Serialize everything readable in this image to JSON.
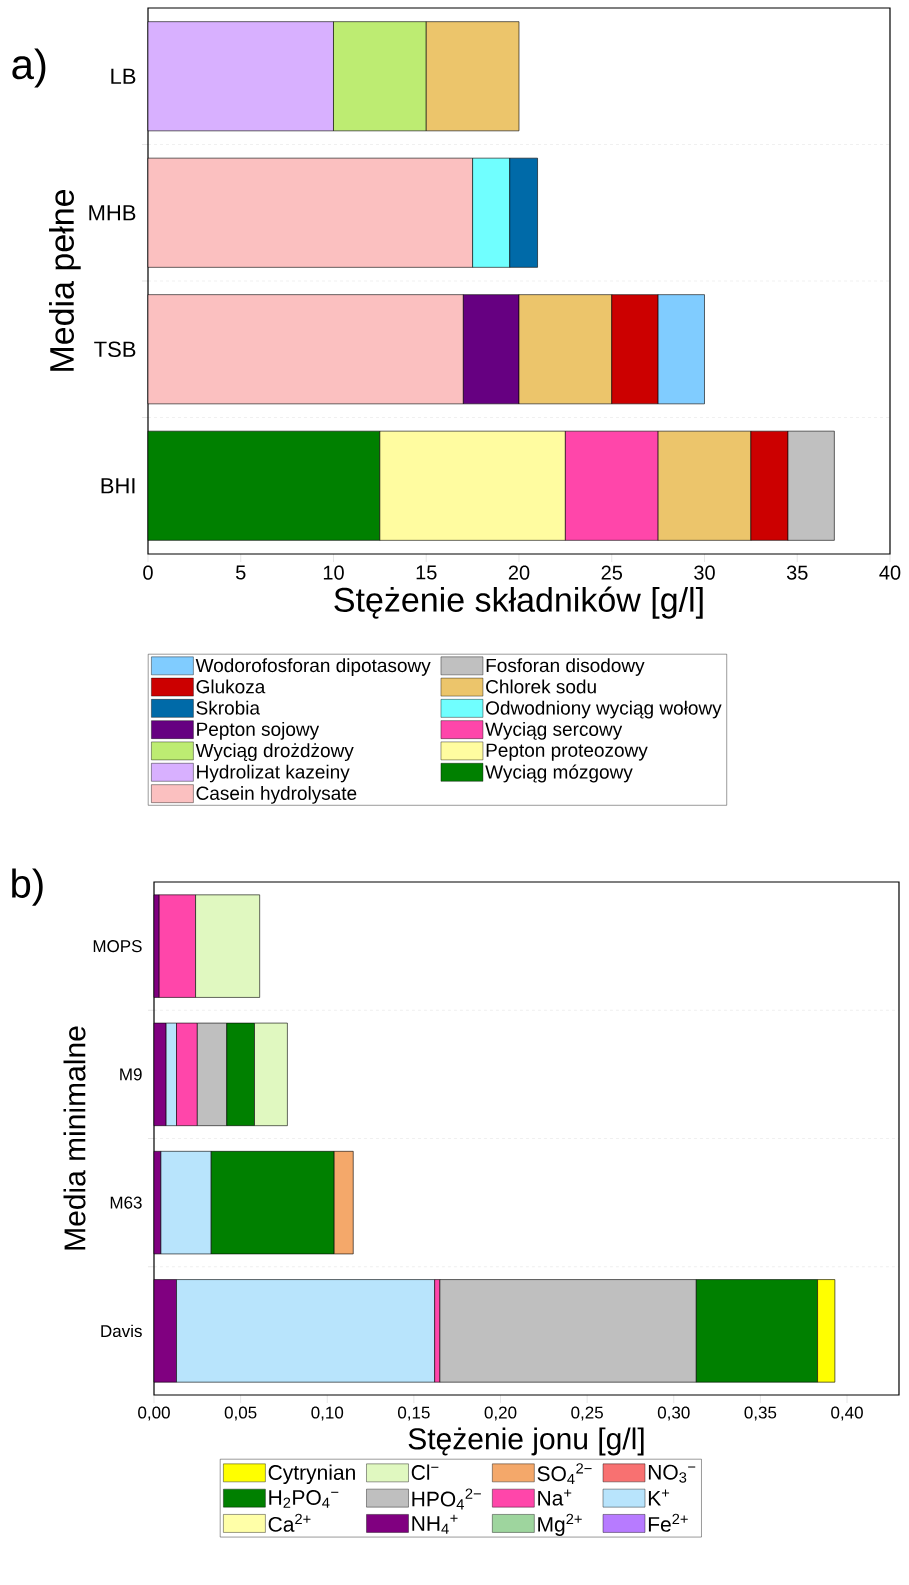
{
  "chart_data": [
    {
      "type": "bar",
      "orientation": "horizontal",
      "stacked": true,
      "annotations": [
        "a)"
      ],
      "xlabel": "Stężenie składników [g/l]",
      "ylabel": "Media pełne",
      "categories": [
        "LB",
        "MHB",
        "TSB",
        "BHI"
      ],
      "xlim": [
        0,
        40
      ],
      "xticks": [
        0,
        5,
        10,
        15,
        20,
        25,
        30,
        35,
        40
      ],
      "grid": "y",
      "legend": "bottom",
      "series": [
        {
          "name": "Casein hydrolysate",
          "color": "#fbc0c0",
          "values": [
            null,
            17.5,
            17,
            null
          ]
        },
        {
          "name": "Wyciąg mózgowy",
          "color": "#008000",
          "values": [
            null,
            null,
            null,
            12.5
          ]
        },
        {
          "name": "Hydrolizat kazeiny",
          "color": "#d8b0ff",
          "values": [
            10,
            null,
            null,
            null
          ]
        },
        {
          "name": "Pepton proteozowy",
          "color": "#fffca0",
          "values": [
            null,
            null,
            null,
            10
          ]
        },
        {
          "name": "Wyciąg drożdżowy",
          "color": "#bdec72",
          "values": [
            5,
            null,
            null,
            null
          ]
        },
        {
          "name": "Wyciąg sercowy",
          "color": "#ff46aa",
          "values": [
            null,
            null,
            null,
            5
          ]
        },
        {
          "name": "Pepton sojowy",
          "color": "#660081",
          "values": [
            null,
            null,
            3,
            null
          ]
        },
        {
          "name": "Odwodniony wyciąg wołowy",
          "color": "#70ffff",
          "values": [
            null,
            2,
            null,
            null
          ]
        },
        {
          "name": "Skrobia",
          "color": "#006aa8",
          "values": [
            null,
            1.5,
            null,
            null
          ]
        },
        {
          "name": "Chlorek sodu",
          "color": "#ecc56b",
          "values": [
            5,
            null,
            5,
            5
          ]
        },
        {
          "name": "Glukoza",
          "color": "#cc0000",
          "values": [
            null,
            null,
            2.5,
            2
          ]
        },
        {
          "name": "Fosforan disodowy",
          "color": "#c0c0c0",
          "values": [
            null,
            null,
            null,
            2.5
          ]
        },
        {
          "name": "Wodorofosforan dipotasowy",
          "color": "#80ccff",
          "values": [
            null,
            null,
            2.5,
            null
          ]
        }
      ]
    },
    {
      "type": "bar",
      "orientation": "horizontal",
      "stacked": true,
      "annotations": [
        "b)"
      ],
      "xlabel": "Stężenie jonu [g/l]",
      "ylabel": "Media minimalne",
      "categories": [
        "MOPS",
        "M9",
        "M63",
        "Davis"
      ],
      "xlim": [
        0,
        0.43
      ],
      "xticks": [
        {
          "value": 0,
          "label": "0,00"
        },
        {
          "value": 0.05,
          "label": "0,05"
        },
        {
          "value": 0.1,
          "label": "0,10"
        },
        {
          "value": 0.15,
          "label": "0,15"
        },
        {
          "value": 0.2,
          "label": "0,20"
        },
        {
          "value": 0.25,
          "label": "0,25"
        },
        {
          "value": 0.3,
          "label": "0,30"
        },
        {
          "value": 0.35,
          "label": "0,35"
        },
        {
          "value": 0.4,
          "label": "0,40"
        }
      ],
      "grid": "y",
      "legend": "bottom",
      "series": [
        {
          "name": "Fe$^{2+}$",
          "color": "#b77bff",
          "values": [
            null,
            null,
            null,
            null
          ]
        },
        {
          "name": "Mg$^{2+}$",
          "color": "#9ed59e",
          "values": [
            null,
            null,
            null,
            null
          ]
        },
        {
          "name": "NH$_{4}$$^{+}$",
          "color": "#800080",
          "values": [
            0.003,
            0.007,
            0.004,
            0.013
          ]
        },
        {
          "name": "Ca$^{2+}$",
          "color": "#ffffa8",
          "values": [
            null,
            null,
            null,
            null
          ]
        },
        {
          "name": "K$^{+}$",
          "color": "#b8e4fc",
          "values": [
            null,
            0.006,
            0.029,
            0.149
          ]
        },
        {
          "name": "Na$^{+}$",
          "color": "#ff46aa",
          "values": [
            0.021,
            0.012,
            null,
            0.003
          ]
        },
        {
          "name": "HPO$_{4}$$^{2−}$",
          "color": "#bfbfbf",
          "values": [
            null,
            0.017,
            null,
            0.148
          ]
        },
        {
          "name": "H$_{2}$PO$_{4}$$^{−}$",
          "color": "#008000",
          "values": [
            null,
            0.016,
            0.071,
            0.07
          ]
        },
        {
          "name": "NO$_{3}$$^{−}$",
          "color": "#f87171",
          "values": [
            null,
            null,
            null,
            null
          ]
        },
        {
          "name": "SO$_{4}$$^{2−}$",
          "color": "#f4a86a",
          "values": [
            null,
            null,
            0.011,
            null
          ]
        },
        {
          "name": "Cl$^{−}$",
          "color": "#e0f8c0",
          "values": [
            0.037,
            0.019,
            null,
            null
          ]
        },
        {
          "name": "Cytrynian",
          "color": "#ffff00",
          "values": [
            null,
            null,
            null,
            0.01
          ]
        }
      ]
    }
  ]
}
